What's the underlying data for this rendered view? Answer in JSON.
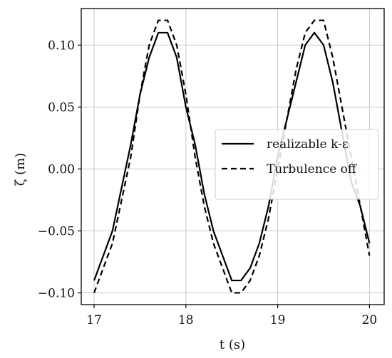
{
  "chart_data": {
    "type": "line",
    "xlabel": "t (s)",
    "ylabel": "ζ (m)",
    "xlim": [
      16.86,
      20.16
    ],
    "ylim": [
      -0.1095,
      0.1295
    ],
    "xticks": [
      17,
      18,
      19,
      20
    ],
    "xtick_labels": [
      "17",
      "18",
      "19",
      "20"
    ],
    "yticks": [
      -0.1,
      -0.05,
      0.0,
      0.05,
      0.1
    ],
    "ytick_labels": [
      "−0.10",
      "−0.05",
      "0.00",
      "0.05",
      "0.10"
    ],
    "grid": true,
    "legend_position": "center-right",
    "series": [
      {
        "name": "realizable k-ε",
        "style": "solid",
        "color": "#000000",
        "x": [
          17.0,
          17.2,
          17.4,
          17.5,
          17.6,
          17.7,
          17.8,
          17.9,
          18.0,
          18.1,
          18.2,
          18.3,
          18.4,
          18.5,
          18.6,
          18.7,
          18.8,
          18.9,
          19.0,
          19.1,
          19.2,
          19.3,
          19.4,
          19.5,
          19.6,
          19.7,
          19.8,
          19.9,
          20.0
        ],
        "y": [
          -0.09,
          -0.05,
          0.02,
          0.06,
          0.09,
          0.11,
          0.11,
          0.09,
          0.05,
          0.02,
          -0.02,
          -0.05,
          -0.07,
          -0.09,
          -0.09,
          -0.08,
          -0.06,
          -0.03,
          0.01,
          0.04,
          0.07,
          0.1,
          0.11,
          0.1,
          0.07,
          0.03,
          -0.01,
          -0.03,
          -0.06
        ]
      },
      {
        "name": "Turbulence off",
        "style": "dashed",
        "color": "#000000",
        "x": [
          17.0,
          17.2,
          17.4,
          17.5,
          17.6,
          17.7,
          17.8,
          17.9,
          18.0,
          18.1,
          18.2,
          18.3,
          18.4,
          18.5,
          18.6,
          18.7,
          18.8,
          18.9,
          19.0,
          19.1,
          19.2,
          19.3,
          19.4,
          19.5,
          19.6,
          19.7,
          19.8,
          19.9,
          20.0
        ],
        "y": [
          -0.1,
          -0.06,
          0.01,
          0.06,
          0.1,
          0.12,
          0.12,
          0.1,
          0.06,
          0.01,
          -0.03,
          -0.06,
          -0.08,
          -0.1,
          -0.1,
          -0.09,
          -0.07,
          -0.04,
          0.0,
          0.04,
          0.08,
          0.11,
          0.12,
          0.12,
          0.09,
          0.05,
          0.01,
          -0.03,
          -0.07
        ]
      }
    ]
  }
}
